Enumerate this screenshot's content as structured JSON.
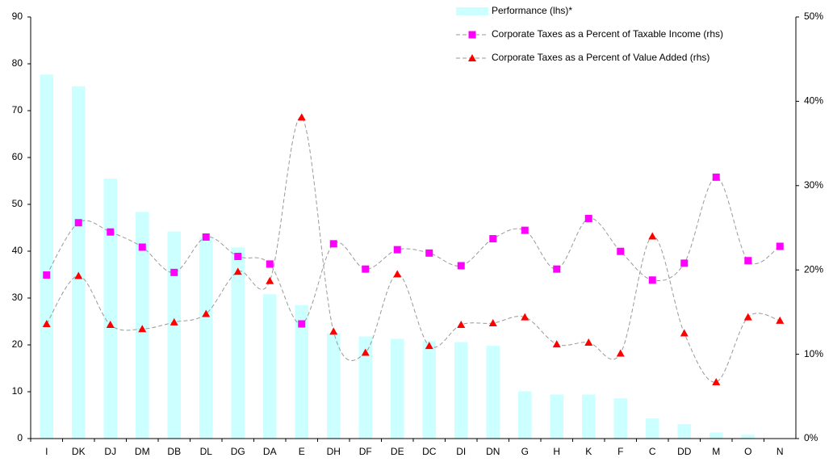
{
  "chart_data": {
    "type": "bar_line",
    "categories": [
      "I",
      "DK",
      "DJ",
      "DM",
      "DB",
      "DL",
      "DG",
      "DA",
      "E",
      "DH",
      "DF",
      "DE",
      "DC",
      "DI",
      "DN",
      "G",
      "H",
      "K",
      "F",
      "C",
      "DD",
      "M",
      "O",
      "N"
    ],
    "series": [
      {
        "name": "Performance (lhs)*",
        "type": "bar",
        "color": "#ccffff",
        "axis": "y",
        "values": [
          77.7,
          75.2,
          55.5,
          48.4,
          44.2,
          43.0,
          40.8,
          30.8,
          28.5,
          22.5,
          21.8,
          21.3,
          20.8,
          20.6,
          19.8,
          10.1,
          9.4,
          9.4,
          8.6,
          4.3,
          3.1,
          1.3,
          0.8,
          0
        ]
      },
      {
        "name": "Corporate Taxes as a Percent of Taxable Income (rhs)",
        "type": "line",
        "marker": "square",
        "color": "#ff00ff",
        "axis": "y2",
        "values": [
          19.4,
          25.6,
          24.5,
          22.7,
          19.7,
          23.9,
          21.6,
          20.7,
          13.6,
          23.1,
          20.1,
          22.4,
          22.0,
          20.5,
          23.7,
          24.7,
          20.1,
          26.1,
          22.2,
          18.8,
          20.8,
          31.0,
          21.1,
          22.8
        ]
      },
      {
        "name": "Corporate Taxes as a Percent of Value Added (rhs)",
        "type": "line",
        "marker": "triangle",
        "color": "#ff0000",
        "axis": "y2",
        "values": [
          13.6,
          19.3,
          13.5,
          13.0,
          13.8,
          14.8,
          19.8,
          18.7,
          38.1,
          12.7,
          10.2,
          19.5,
          11.0,
          13.5,
          13.7,
          14.4,
          11.2,
          11.4,
          10.1,
          24.0,
          12.5,
          6.7,
          14.4,
          14.0
        ]
      }
    ],
    "ylim": [
      0,
      90
    ],
    "yticks": [
      0,
      10,
      20,
      30,
      40,
      50,
      60,
      70,
      80,
      90
    ],
    "y2lim": [
      0,
      50
    ],
    "y2ticks": [
      {
        "value": 0,
        "label": "0%"
      },
      {
        "value": 10,
        "label": "10%"
      },
      {
        "value": 20,
        "label": "20%"
      },
      {
        "value": 30,
        "label": "30%"
      },
      {
        "value": 40,
        "label": "40%"
      },
      {
        "value": 50,
        "label": "50%"
      }
    ],
    "grid": false,
    "legend": "top-right"
  }
}
